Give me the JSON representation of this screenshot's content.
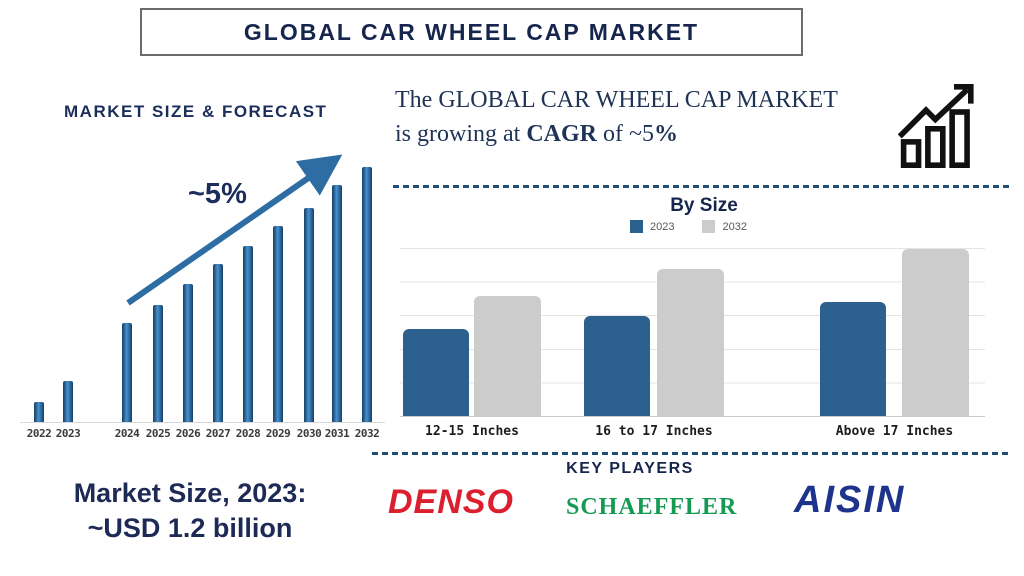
{
  "page_title": "GLOBAL CAR WHEEL CAP MARKET",
  "colors": {
    "navy_heading": "#16254d",
    "bar_blue": "#2b608f",
    "bar_gray": "#cccccc",
    "forecast_bar_blue": "#2e6da4",
    "arrow_blue": "#2e6da4",
    "dashed_line_blue": "#1f4e79",
    "denso_red": "#dc1f2e",
    "schaeffler_green": "#159a52",
    "aisin_blue": "#1d338c",
    "icon_black": "#111111"
  },
  "left_section": {
    "heading": "MARKET SIZE & FORECAST",
    "growth_annotation": "~5%",
    "market_note_line1": "Market Size, 2023:",
    "market_note_line2": "~USD 1.2 billion"
  },
  "right_section": {
    "headline": {
      "line1": "The GLOBAL CAR WHEEL CAP MARKET",
      "line2_prefix": "is growing at ",
      "bold1": "CAGR",
      "mid": " of ~5",
      "bold2": "%"
    }
  },
  "by_size": {
    "title": "By Size",
    "legend": [
      {
        "label": "2023"
      },
      {
        "label": "2032"
      }
    ]
  },
  "key_players": {
    "heading": "KEY PLAYERS",
    "companies": [
      {
        "name": "DENSO",
        "color": "#dc1f2e"
      },
      {
        "name": "SCHAEFFLER",
        "color": "#159a52"
      },
      {
        "name": "AISIN",
        "color": "#1d338c"
      }
    ]
  },
  "chart_data": [
    {
      "type": "bar",
      "title": "MARKET SIZE & FORECAST",
      "categories": [
        "2022",
        "2023",
        "2024",
        "2025",
        "2026",
        "2027",
        "2028",
        "2029",
        "2030",
        "2031",
        "2032"
      ],
      "values": [
        8,
        16,
        39,
        46,
        54,
        62,
        69,
        77,
        84,
        93,
        100
      ],
      "unit": "relative index (no y-axis shown; 2032 = 100, heights estimated from pixels)",
      "annotation": "~5% CAGR trend arrow",
      "known_point": {
        "year": "2023",
        "value": "~USD 1.2 billion"
      },
      "xlabel": "",
      "ylabel": "",
      "grid": false,
      "legend_position": "none"
    },
    {
      "type": "bar",
      "title": "By Size",
      "categories": [
        "12-15 Inches",
        "16 to 17 Inches",
        "Above 17 Inches"
      ],
      "series": [
        {
          "name": "2023",
          "values": [
            52,
            60,
            68
          ]
        },
        {
          "name": "2032",
          "values": [
            72,
            88,
            100
          ]
        }
      ],
      "unit": "relative index (no y-axis shown; 2032 'Above 17 Inches' = 100, estimated from gridlines)",
      "xlabel": "",
      "ylabel": "",
      "grid": true,
      "legend_position": "top"
    }
  ]
}
